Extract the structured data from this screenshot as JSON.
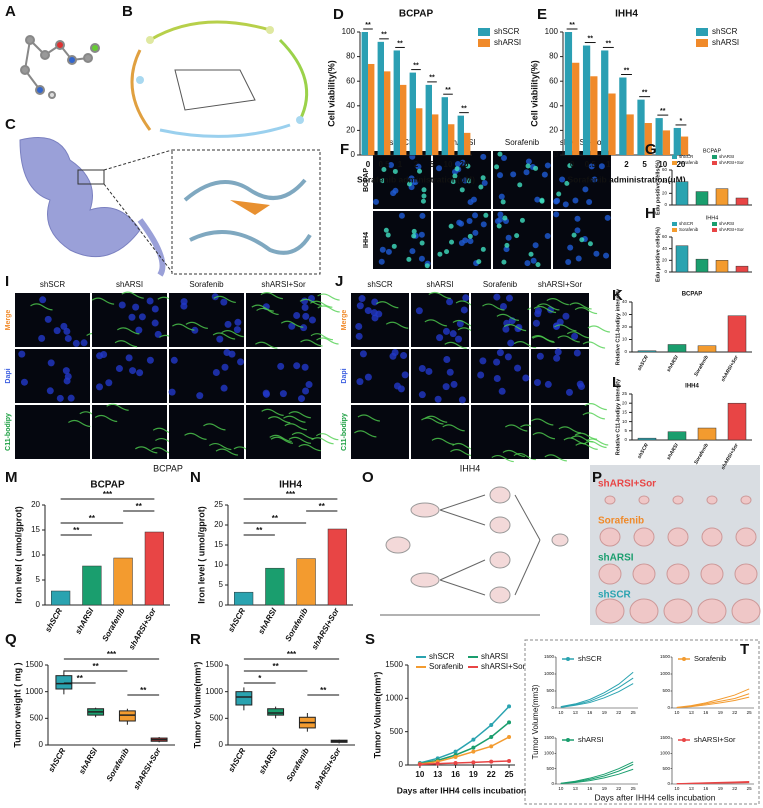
{
  "figure": {
    "panels": [
      {
        "letter": "A"
      },
      {
        "letter": "B"
      },
      {
        "letter": "C"
      },
      {
        "letter": "F",
        "columns": [
          "shSCR",
          "shARSI",
          "Sorafenib",
          "shARSI+Sor"
        ],
        "rows": [
          "BCPAP",
          "IHH4"
        ]
      },
      {
        "letter": "I",
        "columns": [
          "shSCR",
          "shARSI",
          "Sorafenib",
          "shARSI+Sor"
        ],
        "rows": [
          "Merge",
          "Dapi",
          "C11-bodipy"
        ],
        "caption": "BCPAP"
      },
      {
        "letter": "J",
        "columns": [
          "shSCR",
          "shARSI",
          "Sorafenib",
          "shARSI+Sor"
        ],
        "rows": [
          "Merge",
          "Dapi",
          "C11-bodipy"
        ],
        "caption": "IHH4"
      },
      {
        "letter": "O"
      },
      {
        "letter": "P",
        "labels": [
          "shARSI+Sor",
          "Sorafenib",
          "shARSI",
          "shSCR"
        ]
      }
    ]
  },
  "chart_data": [
    {
      "type": "grouped_bar",
      "panel": "D",
      "title": "BCPAP",
      "ylabel": "Cell viability(%)",
      "xlabel": "Sorafenib administration(uM)",
      "categories": [
        "0",
        "0.5",
        "1",
        "2",
        "5",
        "10",
        "20"
      ],
      "series": [
        {
          "name": "shSCR",
          "color": "#2b9fb3",
          "values": [
            100,
            92,
            85,
            67,
            57,
            47,
            32
          ]
        },
        {
          "name": "shARSI",
          "color": "#f08a2a",
          "values": [
            74,
            68,
            57,
            38,
            33,
            25,
            18
          ]
        }
      ],
      "pair_labels": [
        "**",
        "**",
        "**",
        "**",
        "**",
        "**",
        "**"
      ],
      "ylim": [
        0,
        100
      ],
      "yticks": [
        0,
        20,
        40,
        60,
        80,
        100
      ]
    },
    {
      "type": "grouped_bar",
      "panel": "E",
      "title": "IHH4",
      "ylabel": "Cell viability(%)",
      "xlabel": "Sorafenib administration(uM)",
      "categories": [
        "0",
        "0.5",
        "1",
        "2",
        "5",
        "10",
        "20"
      ],
      "series": [
        {
          "name": "shSCR",
          "color": "#2b9fb3",
          "values": [
            100,
            89,
            85,
            63,
            45,
            30,
            22
          ]
        },
        {
          "name": "shARSI",
          "color": "#f08a2a",
          "values": [
            75,
            64,
            50,
            33,
            26,
            20,
            15
          ]
        }
      ],
      "pair_labels": [
        "**",
        "**",
        "**",
        "**",
        "**",
        "**",
        "*"
      ],
      "ylim": [
        0,
        100
      ],
      "yticks": [
        0,
        20,
        40,
        60,
        80,
        100
      ]
    },
    {
      "type": "bar",
      "panel": "G",
      "title": "BCPAP",
      "ylabel": "Edu positive cells(%)",
      "legend": true,
      "categories": [
        "shSCR",
        "shARSI",
        "Sorafenib",
        "shARSI+Sor"
      ],
      "values": [
        40,
        23,
        28,
        12
      ],
      "colors": [
        "#2aa3b0",
        "#1a9e6e",
        "#f39b2f",
        "#e84545"
      ],
      "ylim": [
        0,
        60
      ],
      "yticks": [
        0,
        20,
        40,
        60
      ]
    },
    {
      "type": "bar",
      "panel": "H",
      "title": "IHH4",
      "ylabel": "Edu positive cells(%)",
      "legend": true,
      "categories": [
        "shSCR",
        "shARSI",
        "Sorafenib",
        "shARSI+Sor"
      ],
      "values": [
        45,
        22,
        20,
        10
      ],
      "colors": [
        "#2aa3b0",
        "#1a9e6e",
        "#f39b2f",
        "#e84545"
      ],
      "ylim": [
        0,
        60
      ],
      "yticks": [
        0,
        20,
        40,
        60
      ]
    },
    {
      "type": "bar",
      "panel": "K",
      "title": "BCPAP",
      "ylabel": "Relative C11-bodipy intensity",
      "legend": false,
      "categories": [
        "shSCR",
        "shARSI",
        "Sorafenib",
        "shARSI+Sor"
      ],
      "values": [
        1,
        6,
        5,
        29
      ],
      "colors": [
        "#2aa3b0",
        "#1a9e6e",
        "#f39b2f",
        "#e84545"
      ],
      "ylim": [
        0,
        40
      ],
      "yticks": [
        0,
        10,
        20,
        30,
        40
      ]
    },
    {
      "type": "bar",
      "panel": "L",
      "title": "IHH4",
      "ylabel": "Relative C11-bodipy intensity",
      "legend": false,
      "categories": [
        "shSCR",
        "shARSI",
        "Sorafenib",
        "shARSI+Sor"
      ],
      "values": [
        1,
        4.5,
        6.5,
        20
      ],
      "colors": [
        "#2aa3b0",
        "#1a9e6e",
        "#f39b2f",
        "#e84545"
      ],
      "ylim": [
        0,
        25
      ],
      "yticks": [
        0,
        5,
        10,
        15,
        20,
        25
      ]
    },
    {
      "type": "bar",
      "panel": "M",
      "title": "BCPAP",
      "ylabel": "Iron level ( umol/gprot)",
      "legend": false,
      "categories": [
        "shSCR",
        "shARSI",
        "Sorafenib",
        "shARSI+Sor"
      ],
      "values": [
        2.8,
        7.8,
        9.4,
        14.6
      ],
      "colors": [
        "#2aa3b0",
        "#1a9e6e",
        "#f39b2f",
        "#e84545"
      ],
      "ylim": [
        0,
        20
      ],
      "yticks": [
        0,
        5,
        10,
        15,
        20
      ],
      "significance": [
        {
          "groups": [
            0,
            3
          ],
          "label": "***"
        },
        {
          "groups": [
            2,
            3
          ],
          "label": "**"
        },
        {
          "groups": [
            0,
            2
          ],
          "label": "**"
        },
        {
          "groups": [
            0,
            1
          ],
          "label": "**"
        }
      ]
    },
    {
      "type": "bar",
      "panel": "N",
      "title": "IHH4",
      "ylabel": "Iron level ( umol/gprot)",
      "legend": false,
      "categories": [
        "shSCR",
        "shARSI",
        "Sorafenib",
        "shARSI+Sor"
      ],
      "values": [
        3.2,
        9.2,
        11.6,
        19
      ],
      "colors": [
        "#2aa3b0",
        "#1a9e6e",
        "#f39b2f",
        "#e84545"
      ],
      "ylim": [
        0,
        25
      ],
      "yticks": [
        0,
        5,
        10,
        15,
        20,
        25
      ],
      "significance": [
        {
          "groups": [
            0,
            3
          ],
          "label": "***"
        },
        {
          "groups": [
            2,
            3
          ],
          "label": "**"
        },
        {
          "groups": [
            0,
            2
          ],
          "label": "**"
        },
        {
          "groups": [
            0,
            1
          ],
          "label": "**"
        }
      ]
    },
    {
      "type": "box",
      "panel": "Q",
      "ylabel": "Tumor weight ( mg )",
      "categories": [
        "shSCR",
        "shARSI",
        "Sorafenib",
        "shARSI+Sor"
      ],
      "boxes": [
        [
          950,
          1050,
          1150,
          1300,
          1400
        ],
        [
          520,
          560,
          620,
          680,
          700
        ],
        [
          380,
          450,
          560,
          640,
          680
        ],
        [
          50,
          70,
          100,
          130,
          150
        ]
      ],
      "colors": [
        "#2aa3b0",
        "#1a9e6e",
        "#f39b2f",
        "#e84545"
      ],
      "ylim": [
        0,
        1500
      ],
      "yticks": [
        0,
        500,
        1000,
        1500
      ],
      "significance": [
        {
          "groups": [
            0,
            3
          ],
          "label": "***"
        },
        {
          "groups": [
            0,
            2
          ],
          "label": "**"
        },
        {
          "groups": [
            0,
            1
          ],
          "label": "**"
        },
        {
          "groups": [
            2,
            3
          ],
          "label": "**"
        }
      ]
    },
    {
      "type": "box",
      "panel": "R",
      "ylabel": "Tumor Volume(mm³)",
      "categories": [
        "shSCR",
        "shARSI",
        "Sorafenib",
        "shARSI+Sor"
      ],
      "boxes": [
        [
          650,
          750,
          900,
          1000,
          1080
        ],
        [
          500,
          560,
          600,
          680,
          720
        ],
        [
          250,
          320,
          420,
          520,
          600
        ],
        [
          30,
          50,
          70,
          90,
          100
        ]
      ],
      "colors": [
        "#2aa3b0",
        "#1a9e6e",
        "#f39b2f",
        "#e84545"
      ],
      "ylim": [
        0,
        1500
      ],
      "yticks": [
        0,
        500,
        1000,
        1500
      ],
      "significance": [
        {
          "groups": [
            0,
            3
          ],
          "label": "***"
        },
        {
          "groups": [
            0,
            2
          ],
          "label": "**"
        },
        {
          "groups": [
            0,
            1
          ],
          "label": "*"
        },
        {
          "groups": [
            2,
            3
          ],
          "label": "**"
        }
      ]
    },
    {
      "type": "line",
      "panel": "S",
      "ylabel": "Tumor Volume(mm³)",
      "xlabel": "Days after IHH4 cells incubation",
      "x": [
        10,
        13,
        16,
        19,
        22,
        25
      ],
      "xlim": [
        8,
        26
      ],
      "xticks": [
        10,
        13,
        16,
        19,
        22,
        25
      ],
      "series": [
        {
          "name": "shSCR",
          "color": "#2aa3b0",
          "values": [
            30,
            100,
            200,
            380,
            600,
            880
          ]
        },
        {
          "name": "shARSI",
          "color": "#1a9e6e",
          "values": [
            20,
            70,
            150,
            260,
            420,
            640
          ]
        },
        {
          "name": "Sorafenib",
          "color": "#f39b2f",
          "values": [
            15,
            50,
            120,
            200,
            280,
            420
          ]
        },
        {
          "name": "shARSI+Sor",
          "color": "#e84545",
          "values": [
            10,
            20,
            30,
            40,
            50,
            60
          ]
        }
      ],
      "ylim": [
        0,
        1500
      ],
      "yticks": [
        0,
        500,
        1000,
        1500
      ]
    },
    {
      "type": "line_multiples",
      "panel": "T",
      "ylabel": "Tumor Volume(mm3)",
      "xlabel": "Days after IHH4 cells incubation",
      "x": [
        10,
        13,
        16,
        19,
        22,
        25
      ],
      "xlim": [
        9,
        26
      ],
      "xticks": [
        10,
        13,
        16,
        19,
        22,
        25
      ],
      "ylim": [
        0,
        1500
      ],
      "yticks": [
        0,
        500,
        1000,
        1500
      ],
      "panels": [
        {
          "name": "shSCR",
          "color": "#2aa3b0",
          "lines": [
            [
              40,
              120,
              250,
              450,
              700,
              1050
            ],
            [
              30,
              100,
              200,
              380,
              600,
              880
            ],
            [
              20,
              80,
              160,
              300,
              480,
              720
            ]
          ]
        },
        {
          "name": "Sorafenib",
          "color": "#f39b2f",
          "lines": [
            [
              20,
              70,
              150,
              260,
              380,
              560
            ],
            [
              15,
              50,
              120,
              200,
              280,
              420
            ],
            [
              10,
              40,
              90,
              150,
              220,
              320
            ]
          ]
        },
        {
          "name": "shARSI",
          "color": "#1a9e6e",
          "lines": [
            [
              25,
              90,
              190,
              320,
              500,
              720
            ],
            [
              20,
              70,
              150,
              260,
              420,
              640
            ],
            [
              15,
              50,
              110,
              200,
              320,
              480
            ]
          ]
        },
        {
          "name": "shARSI+Sor",
          "color": "#e84545",
          "lines": [
            [
              12,
              25,
              40,
              55,
              65,
              80
            ],
            [
              10,
              20,
              30,
              40,
              50,
              60
            ],
            [
              8,
              15,
              22,
              30,
              38,
              45
            ]
          ]
        }
      ]
    }
  ]
}
